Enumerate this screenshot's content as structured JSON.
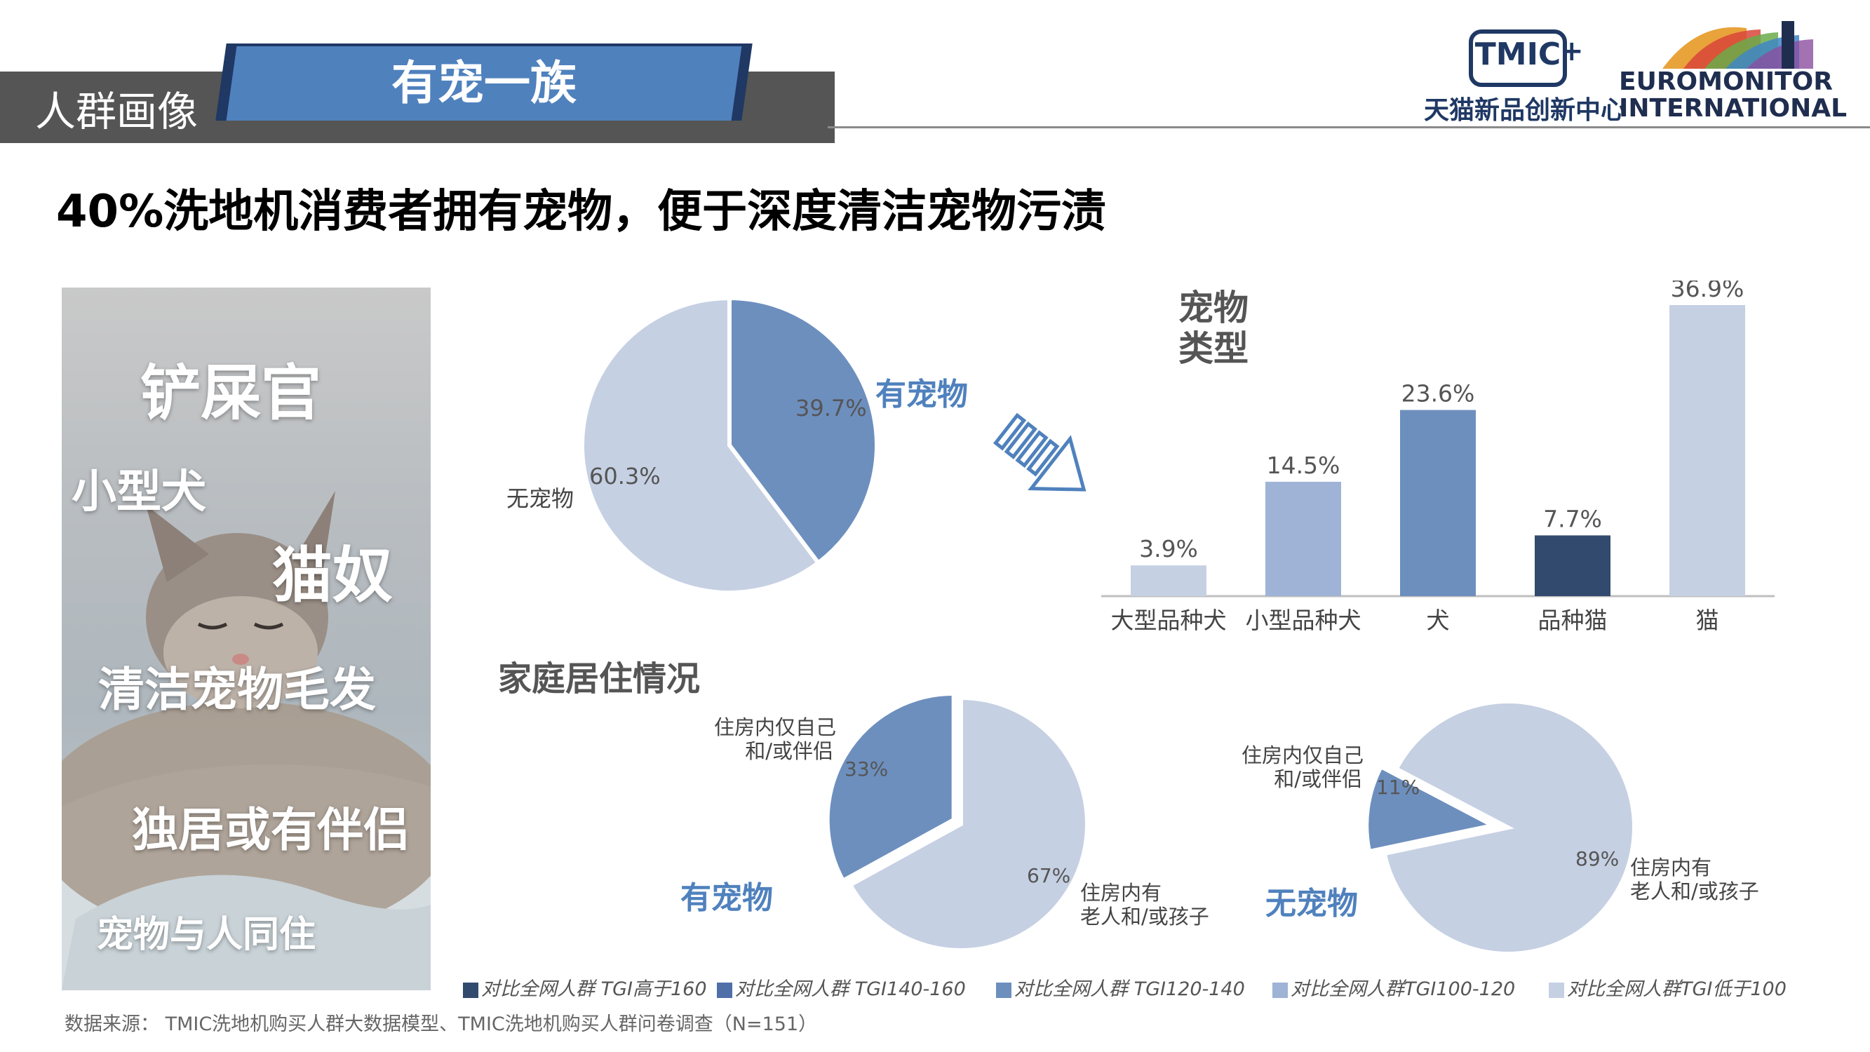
{
  "header": {
    "section_label": "人群画像",
    "tab_label": "有宠一族",
    "logo_tmic": "TMIC",
    "logo_tmic_cn": "天猫新品创新中心",
    "logo_euromonitor": "EUROMONITOR INTERNATIONAL"
  },
  "headline": "40%洗地机消费者拥有宠物，便于深度清洁宠物污渍",
  "photo_tags": [
    "铲屎官",
    "小型犬",
    "猫奴",
    "清洁宠物毛发",
    "独居或有伴侣",
    "宠物与人同住"
  ],
  "colors": {
    "tgi_gt160": "#324a6e",
    "tgi_140_160": "#4f6fa8",
    "tgi_120_140": "#6d8fbe",
    "tgi_100_120": "#9fb3d6",
    "tgi_lt100": "#c6d0e3",
    "accent": "#4f81bd"
  },
  "chart_data": [
    {
      "type": "pie",
      "labels": [
        "有宠物",
        "无宠物"
      ],
      "values": [
        39.7,
        60.3
      ],
      "value_labels": [
        "39.7%",
        "60.3%"
      ]
    },
    {
      "type": "bar",
      "title": "宠物类型",
      "categories": [
        "大型品种犬",
        "小型品种犬",
        "犬",
        "品种猫",
        "猫"
      ],
      "values": [
        3.9,
        14.5,
        23.6,
        7.7,
        36.9
      ],
      "value_labels": [
        "3.9%",
        "14.5%",
        "23.6%",
        "7.7%",
        "36.9%"
      ],
      "ylim": [
        0,
        36.9
      ],
      "grid": false
    },
    {
      "type": "pie",
      "section_title": "家庭居住情况",
      "group_label": "有宠物",
      "labels": [
        "住房内仅自己和/或伴侣",
        "住房内有老人和/或孩子"
      ],
      "values": [
        33,
        67
      ],
      "value_labels": [
        "33%",
        "67%"
      ]
    },
    {
      "type": "pie",
      "group_label": "无宠物",
      "labels": [
        "住房内仅自己和/或伴侣",
        "住房内有老人和/或孩子"
      ],
      "values": [
        11,
        89
      ],
      "value_labels": [
        "11%",
        "89%"
      ]
    }
  ],
  "text": {
    "pie1_label_pet": "有宠物",
    "pie1_label_nopet": "无宠物",
    "bar_title_line1": "宠物",
    "bar_title_line2": "类型",
    "home_section_title": "家庭居住情况",
    "pie2_group": "有宠物",
    "pie3_group": "无宠物",
    "alone_line1": "住房内仅自己",
    "alone_line2": "和/或伴侣",
    "elder_line1": "住房内有",
    "elder_line2": "老人和/或孩子"
  },
  "legend": [
    {
      "label": "对比全网人群 TGI高于160",
      "color": "#324a6e"
    },
    {
      "label": "对比全网人群 TGI140-160",
      "color": "#4f6fa8"
    },
    {
      "label": "对比全网人群 TGI120-140",
      "color": "#6d8fbe"
    },
    {
      "label": "对比全网人群TGI100-120",
      "color": "#9fb3d6"
    },
    {
      "label": "对比全网人群TGI低于100",
      "color": "#c6d0e3"
    }
  ],
  "source": "数据来源： TMIC洗地机购买人群大数据模型、TMIC洗地机购买人群问卷调查（N=151）"
}
